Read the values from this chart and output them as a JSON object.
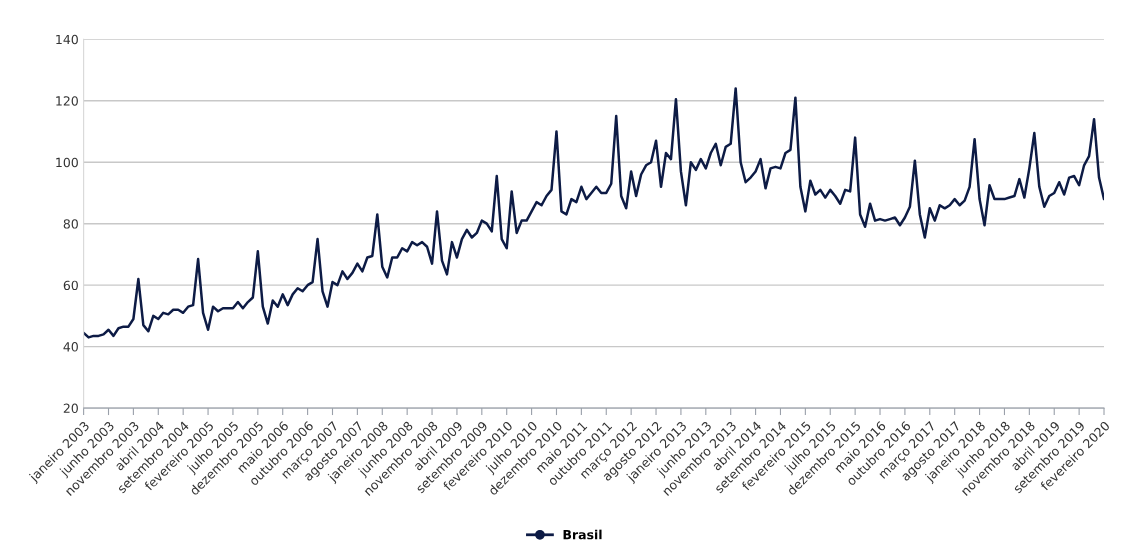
{
  "chart_data": {
    "type": "line",
    "categories": [
      "janeiro 2003",
      null,
      null,
      null,
      null,
      "junho 2003",
      null,
      null,
      null,
      null,
      "novembro 2003",
      null,
      null,
      null,
      null,
      "abril 2004",
      null,
      null,
      null,
      null,
      "setembro 2004",
      null,
      null,
      null,
      null,
      "fevereiro 2005",
      null,
      null,
      null,
      null,
      "julho 2005",
      null,
      null,
      null,
      null,
      "dezembro 2005",
      null,
      null,
      null,
      null,
      "maio 2006",
      null,
      null,
      null,
      null,
      "outubro 2006",
      null,
      null,
      null,
      null,
      "março 2007",
      null,
      null,
      null,
      null,
      "agosto 2007",
      null,
      null,
      null,
      null,
      "janeiro 2008",
      null,
      null,
      null,
      null,
      "junho 2008",
      null,
      null,
      null,
      null,
      "novembro 2008",
      null,
      null,
      null,
      null,
      "abril 2009",
      null,
      null,
      null,
      null,
      "setembro 2009",
      null,
      null,
      null,
      null,
      "fevereiro 2010",
      null,
      null,
      null,
      null,
      "julho 2010",
      null,
      null,
      null,
      null,
      "dezembro 2010",
      null,
      null,
      null,
      null,
      "maio 2011",
      null,
      null,
      null,
      null,
      "outubro 2011",
      null,
      null,
      null,
      null,
      "março 2012",
      null,
      null,
      null,
      null,
      "agosto 2012",
      null,
      null,
      null,
      null,
      "janeiro 2013",
      null,
      null,
      null,
      null,
      "junho 2013",
      null,
      null,
      null,
      null,
      "novembro 2013",
      null,
      null,
      null,
      null,
      "abril 2014",
      null,
      null,
      null,
      null,
      "setembro 2014",
      null,
      null,
      null,
      null,
      "fevereiro 2015",
      null,
      null,
      null,
      null,
      "julho 2015",
      null,
      null,
      null,
      null,
      "dezembro 2015",
      null,
      null,
      null,
      null,
      "maio 2016",
      null,
      null,
      null,
      null,
      "outubro 2016",
      null,
      null,
      null,
      null,
      "março 2017",
      null,
      null,
      null,
      null,
      "agosto 2017",
      null,
      null,
      null,
      null,
      "janeiro 2018",
      null,
      null,
      null,
      null,
      "junho 2018",
      null,
      null,
      null,
      null,
      "novembro 2018",
      null,
      null,
      null,
      null,
      "abril 2019",
      null,
      null,
      null,
      null,
      "setembro 2019",
      null,
      null,
      null,
      null,
      "fevereiro 2020"
    ],
    "series": [
      {
        "name": "Brasil",
        "color": "#0d1b45",
        "values": [
          44.5,
          43,
          43.5,
          43.5,
          44,
          45.5,
          43.5,
          46,
          46.5,
          46.5,
          49,
          62,
          47,
          45,
          50,
          49,
          51,
          50.5,
          52,
          52,
          51,
          53,
          53.5,
          68.5,
          51,
          45.5,
          53,
          51.5,
          52.5,
          52.5,
          52.5,
          54.5,
          52.5,
          54.5,
          56,
          71,
          53,
          47.5,
          55,
          53,
          57,
          53.5,
          57,
          59,
          58,
          60,
          61,
          75,
          58,
          53,
          61,
          60,
          64.5,
          62,
          64,
          67,
          64.5,
          69,
          69.5,
          83,
          66,
          62.5,
          69,
          69,
          72,
          71,
          74,
          73,
          74,
          72.5,
          67,
          84,
          68,
          63.5,
          74,
          69,
          75,
          78,
          75.5,
          77,
          81,
          80,
          77.5,
          95.5,
          75,
          72,
          90.5,
          77,
          81,
          81,
          84,
          87,
          86,
          89,
          91,
          110,
          84,
          83,
          88,
          87,
          92,
          88,
          90,
          92,
          90,
          90,
          93,
          115,
          89,
          85,
          97,
          89,
          96,
          99,
          100,
          107,
          92,
          103,
          101,
          120.5,
          97,
          86,
          100,
          97.5,
          101,
          98,
          103,
          106,
          99,
          105,
          106,
          124,
          100,
          93.5,
          95,
          97,
          101,
          91.5,
          98,
          98.5,
          98,
          103,
          104,
          121,
          92,
          84,
          94,
          89.5,
          91,
          88.5,
          91,
          89,
          86.5,
          91,
          90.5,
          108,
          83,
          79,
          86.5,
          81,
          81.5,
          81,
          81.5,
          82,
          79.5,
          82,
          85.5,
          100.5,
          83,
          75.5,
          85,
          81,
          86,
          85,
          86,
          88,
          86,
          87.5,
          92,
          107.5,
          88,
          79.5,
          92.5,
          88,
          88,
          88,
          88.5,
          89,
          94.5,
          88.5,
          98,
          109.5,
          92,
          85.5,
          89,
          90,
          93.5,
          89.5,
          95,
          95.5,
          92.5,
          99,
          102,
          114,
          95,
          88
        ]
      }
    ],
    "ylim": [
      20,
      140
    ],
    "yticks": [
      20,
      40,
      60,
      80,
      100,
      120,
      140
    ],
    "grid": "y",
    "legend": "bottom"
  }
}
